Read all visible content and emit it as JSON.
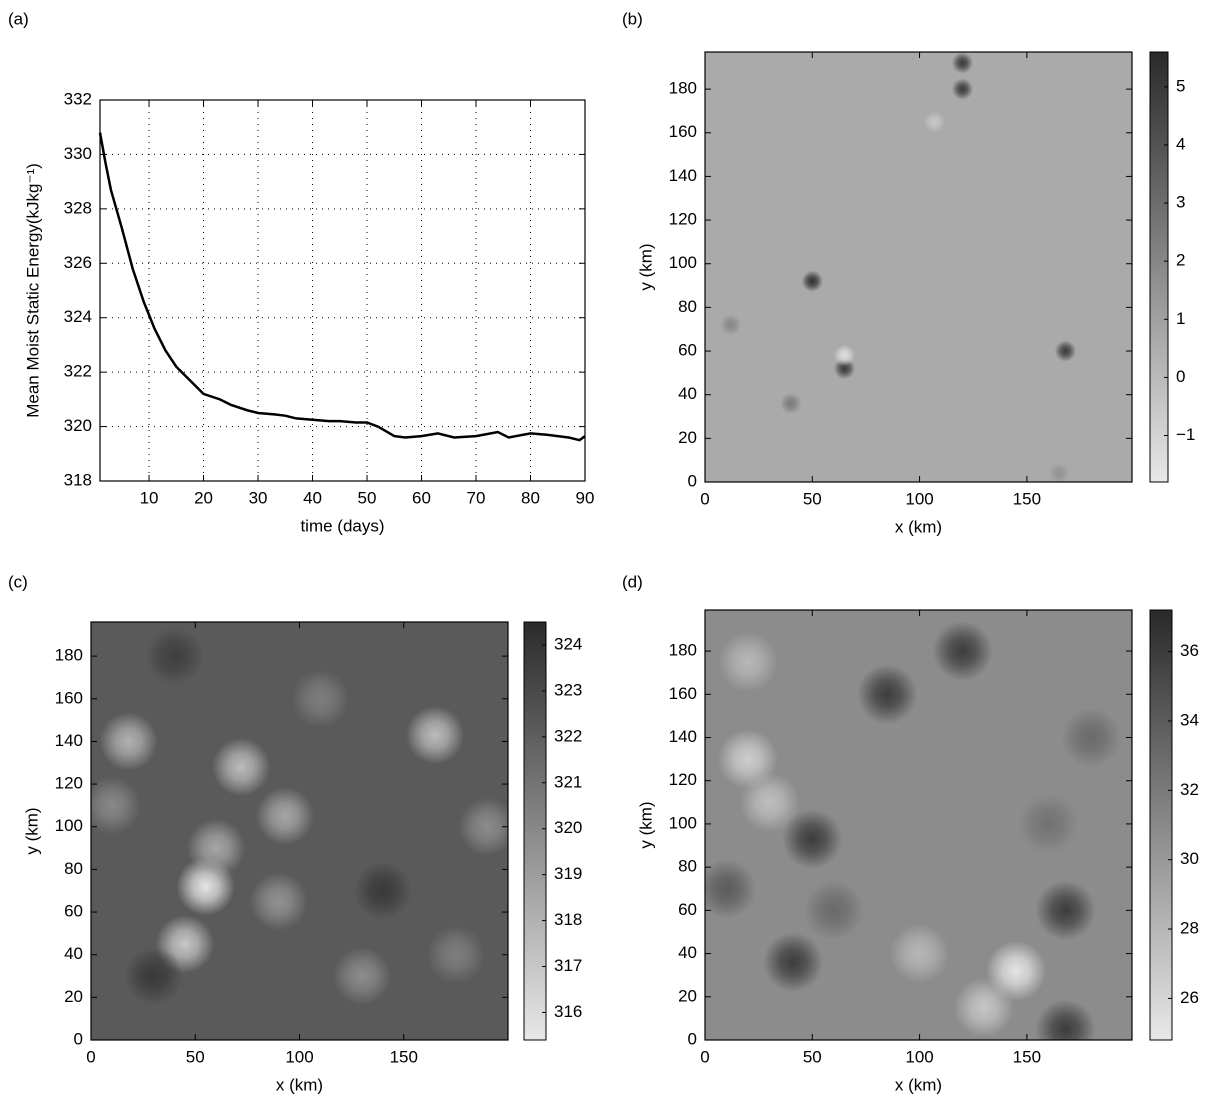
{
  "chart_data": [
    {
      "type": "line",
      "label": "(a)",
      "xlabel": "time (days)",
      "ylabel": "Mean Moist Static Energy(kJkg⁻¹)",
      "x": [
        1,
        2,
        3,
        5,
        7,
        9,
        11,
        13,
        15,
        17,
        20,
        23,
        25,
        28,
        30,
        33,
        35,
        37,
        40,
        43,
        45,
        48,
        50,
        52,
        55,
        57,
        60,
        63,
        66,
        70,
        74,
        76,
        80,
        83,
        87,
        89,
        90
      ],
      "values": [
        330.8,
        329.7,
        328.7,
        327.3,
        325.8,
        324.6,
        323.6,
        322.8,
        322.2,
        321.8,
        321.2,
        321.0,
        320.8,
        320.6,
        320.5,
        320.45,
        320.4,
        320.3,
        320.25,
        320.2,
        320.2,
        320.15,
        320.15,
        320.0,
        319.65,
        319.6,
        319.65,
        319.75,
        319.6,
        319.65,
        319.8,
        319.6,
        319.75,
        319.7,
        319.6,
        319.5,
        319.65
      ],
      "color": "#000000",
      "xlim": [
        1,
        90
      ],
      "ylim": [
        318,
        332
      ],
      "xticks": [
        10,
        20,
        30,
        40,
        50,
        60,
        70,
        80,
        90
      ],
      "yticks": [
        318,
        320,
        322,
        324,
        326,
        328,
        330,
        332
      ],
      "grid": true
    },
    {
      "type": "contour",
      "label": "(b)",
      "xlabel": "x (km)",
      "ylabel": "y (km)",
      "xlim": [
        0,
        199
      ],
      "ylim": [
        0,
        197
      ],
      "xticks": [
        0,
        50,
        100,
        150
      ],
      "yticks": [
        0,
        20,
        40,
        60,
        80,
        100,
        120,
        140,
        160,
        180
      ],
      "clim": [
        -1.8,
        5.6
      ],
      "cticks": [
        {
          "value": -1,
          "label": "−1"
        },
        0,
        1,
        2,
        3,
        4,
        5
      ],
      "background": 0.6,
      "x": [
        50,
        65,
        65,
        168,
        120,
        120,
        12,
        40,
        165,
        107
      ],
      "y": [
        92,
        52,
        58,
        60,
        180,
        192,
        72,
        36,
        4,
        165
      ],
      "values": [
        5.5,
        5,
        -1.5,
        5,
        5,
        5,
        2,
        2.5,
        1.5,
        -0.5
      ]
    },
    {
      "type": "contour",
      "label": "(c)",
      "xlabel": "x (km)",
      "ylabel": "y (km)",
      "xlim": [
        0,
        200
      ],
      "ylim": [
        0,
        196
      ],
      "xticks": [
        0,
        50,
        100,
        150
      ],
      "yticks": [
        0,
        20,
        40,
        60,
        80,
        100,
        120,
        140,
        160,
        180
      ],
      "clim": [
        315.4,
        324.5
      ],
      "cticks": [
        316,
        317,
        318,
        319,
        320,
        321,
        322,
        323,
        324
      ],
      "background": 322.2,
      "x": [
        55,
        45,
        93,
        72,
        18,
        165,
        90,
        130,
        30,
        140,
        60,
        10,
        110,
        175,
        40,
        190
      ],
      "y": [
        72,
        45,
        105,
        128,
        140,
        143,
        65,
        30,
        30,
        70,
        90,
        110,
        160,
        40,
        180,
        100
      ],
      "values": [
        315.5,
        317,
        318.5,
        317.5,
        318,
        317.5,
        319.5,
        319.8,
        323.8,
        323.8,
        318.5,
        320,
        320.5,
        320.5,
        323.5,
        319.8
      ]
    },
    {
      "type": "contour",
      "label": "(d)",
      "xlabel": "x (km)",
      "ylabel": "y (km)",
      "xlim": [
        0,
        199
      ],
      "ylim": [
        0,
        199
      ],
      "xticks": [
        0,
        50,
        100,
        150
      ],
      "yticks": [
        0,
        20,
        40,
        60,
        80,
        100,
        120,
        140,
        160,
        180
      ],
      "clim": [
        24.8,
        37.2
      ],
      "cticks": [
        26,
        28,
        30,
        32,
        34,
        36
      ],
      "background": 30.8,
      "x": [
        145,
        130,
        20,
        30,
        20,
        50,
        41,
        120,
        168,
        85,
        168,
        160,
        60,
        180,
        100,
        10
      ],
      "y": [
        32,
        15,
        130,
        110,
        175,
        93,
        36,
        180,
        60,
        160,
        5,
        100,
        60,
        140,
        40,
        70
      ],
      "values": [
        25,
        27,
        26.5,
        27.5,
        28,
        36,
        36,
        36,
        36,
        36,
        36,
        32.5,
        33,
        33,
        28,
        34
      ]
    }
  ]
}
